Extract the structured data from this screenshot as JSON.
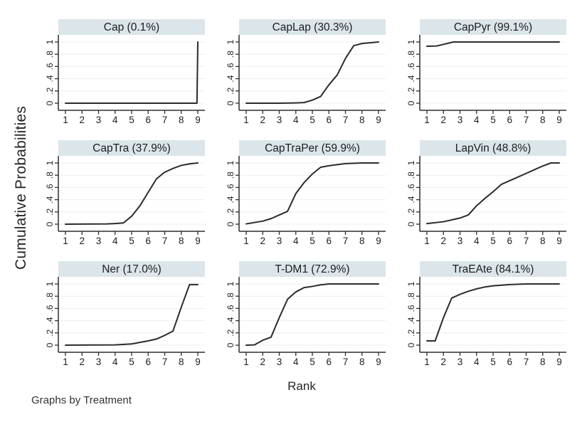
{
  "figure": {
    "ylabel": "Cumulative Probabilities",
    "xlabel": "Rank",
    "footer": "Graphs by Treatment"
  },
  "style": {
    "background": "#ffffff",
    "band_color": "#dbe5ea",
    "grid_color": "#e8eff3",
    "axis_color": "#2e2e2e",
    "line_color": "#2b2b2b",
    "text_color": "#1d1d1d"
  },
  "chart_data": {
    "type": "line",
    "layout": "3x3 small multiples, one panel per treatment",
    "title": "",
    "xlabel": "Rank",
    "ylabel": "Cumulative Probabilities",
    "footer": "Graphs by Treatment",
    "xlim": [
      1,
      9
    ],
    "ylim": [
      0,
      1
    ],
    "grid": "horizontal gridlines at each y tick",
    "legend_position": "none",
    "x_ticks": [
      1,
      2,
      3,
      4,
      5,
      6,
      7,
      8,
      9
    ],
    "y_ticks": [
      0,
      0.2,
      0.4,
      0.6,
      0.8,
      1
    ],
    "y_tick_labels": [
      "0",
      ".2",
      ".4",
      ".6",
      ".8",
      "1"
    ],
    "panels": [
      {
        "treatment": "Cap",
        "sucra": "0.1%",
        "title": "Cap (0.1%)",
        "curve": [
          [
            1,
            0
          ],
          [
            8,
            0
          ],
          [
            8.95,
            0
          ],
          [
            9,
            1
          ]
        ]
      },
      {
        "treatment": "CapLap",
        "sucra": "30.3%",
        "title": "CapLap (30.3%)",
        "curve": [
          [
            1,
            0
          ],
          [
            3,
            0
          ],
          [
            4,
            0.005
          ],
          [
            4.5,
            0.01
          ],
          [
            5,
            0.05
          ],
          [
            5.5,
            0.11
          ],
          [
            6,
            0.3
          ],
          [
            6.5,
            0.46
          ],
          [
            7,
            0.73
          ],
          [
            7.5,
            0.94
          ],
          [
            8,
            0.975
          ],
          [
            9,
            1
          ]
        ]
      },
      {
        "treatment": "CapPyr",
        "sucra": "99.1%",
        "title": "CapPyr (99.1%)",
        "curve": [
          [
            1,
            0.93
          ],
          [
            1.6,
            0.935
          ],
          [
            2.6,
            1
          ],
          [
            9,
            1
          ]
        ]
      },
      {
        "treatment": "CapTra",
        "sucra": "37.9%",
        "title": "CapTra (37.9%)",
        "curve": [
          [
            1,
            0
          ],
          [
            3.5,
            0.005
          ],
          [
            4,
            0.01
          ],
          [
            4.5,
            0.02
          ],
          [
            5,
            0.13
          ],
          [
            5.5,
            0.3
          ],
          [
            6,
            0.52
          ],
          [
            6.5,
            0.74
          ],
          [
            7,
            0.85
          ],
          [
            7.5,
            0.91
          ],
          [
            8,
            0.96
          ],
          [
            8.5,
            0.985
          ],
          [
            9,
            1
          ]
        ]
      },
      {
        "treatment": "CapTraPer",
        "sucra": "59.9%",
        "title": "CapTraPer (59.9%)",
        "curve": [
          [
            1,
            0.005
          ],
          [
            2,
            0.05
          ],
          [
            2.5,
            0.09
          ],
          [
            3,
            0.15
          ],
          [
            3.5,
            0.21
          ],
          [
            4,
            0.5
          ],
          [
            4.5,
            0.68
          ],
          [
            5,
            0.82
          ],
          [
            5.5,
            0.93
          ],
          [
            6,
            0.955
          ],
          [
            7,
            0.99
          ],
          [
            8,
            1
          ],
          [
            9,
            1
          ]
        ]
      },
      {
        "treatment": "LapVin",
        "sucra": "48.8%",
        "title": "LapVin (48.8%)",
        "curve": [
          [
            1,
            0.01
          ],
          [
            2,
            0.04
          ],
          [
            3,
            0.1
          ],
          [
            3.5,
            0.15
          ],
          [
            4,
            0.3
          ],
          [
            4.5,
            0.42
          ],
          [
            5,
            0.53
          ],
          [
            5.5,
            0.65
          ],
          [
            6,
            0.71
          ],
          [
            6.5,
            0.77
          ],
          [
            7,
            0.83
          ],
          [
            7.5,
            0.89
          ],
          [
            8,
            0.95
          ],
          [
            8.5,
            1
          ],
          [
            9,
            1
          ]
        ]
      },
      {
        "treatment": "Ner",
        "sucra": "17.0%",
        "title": "Ner (17.0%)",
        "curve": [
          [
            1,
            0
          ],
          [
            4,
            0.005
          ],
          [
            5,
            0.02
          ],
          [
            6,
            0.07
          ],
          [
            6.5,
            0.1
          ],
          [
            7,
            0.16
          ],
          [
            7.5,
            0.23
          ],
          [
            8,
            0.62
          ],
          [
            8.5,
            0.99
          ],
          [
            9,
            0.99
          ]
        ]
      },
      {
        "treatment": "T-DM1",
        "sucra": "72.9%",
        "title": "T-DM1 (72.9%)",
        "curve": [
          [
            1,
            0
          ],
          [
            1.5,
            0.005
          ],
          [
            2,
            0.08
          ],
          [
            2.5,
            0.13
          ],
          [
            3,
            0.45
          ],
          [
            3.5,
            0.75
          ],
          [
            4,
            0.87
          ],
          [
            4.5,
            0.94
          ],
          [
            5,
            0.96
          ],
          [
            5.5,
            0.985
          ],
          [
            6,
            1
          ],
          [
            9,
            1
          ]
        ]
      },
      {
        "treatment": "TraEAte",
        "sucra": "84.1%",
        "title": "TraEAte (84.1%)",
        "curve": [
          [
            1,
            0.07
          ],
          [
            1.5,
            0.07
          ],
          [
            2,
            0.45
          ],
          [
            2.5,
            0.77
          ],
          [
            3,
            0.83
          ],
          [
            3.5,
            0.88
          ],
          [
            4,
            0.92
          ],
          [
            4.5,
            0.95
          ],
          [
            5,
            0.97
          ],
          [
            6,
            0.99
          ],
          [
            7,
            1
          ],
          [
            9,
            1
          ]
        ]
      }
    ]
  }
}
